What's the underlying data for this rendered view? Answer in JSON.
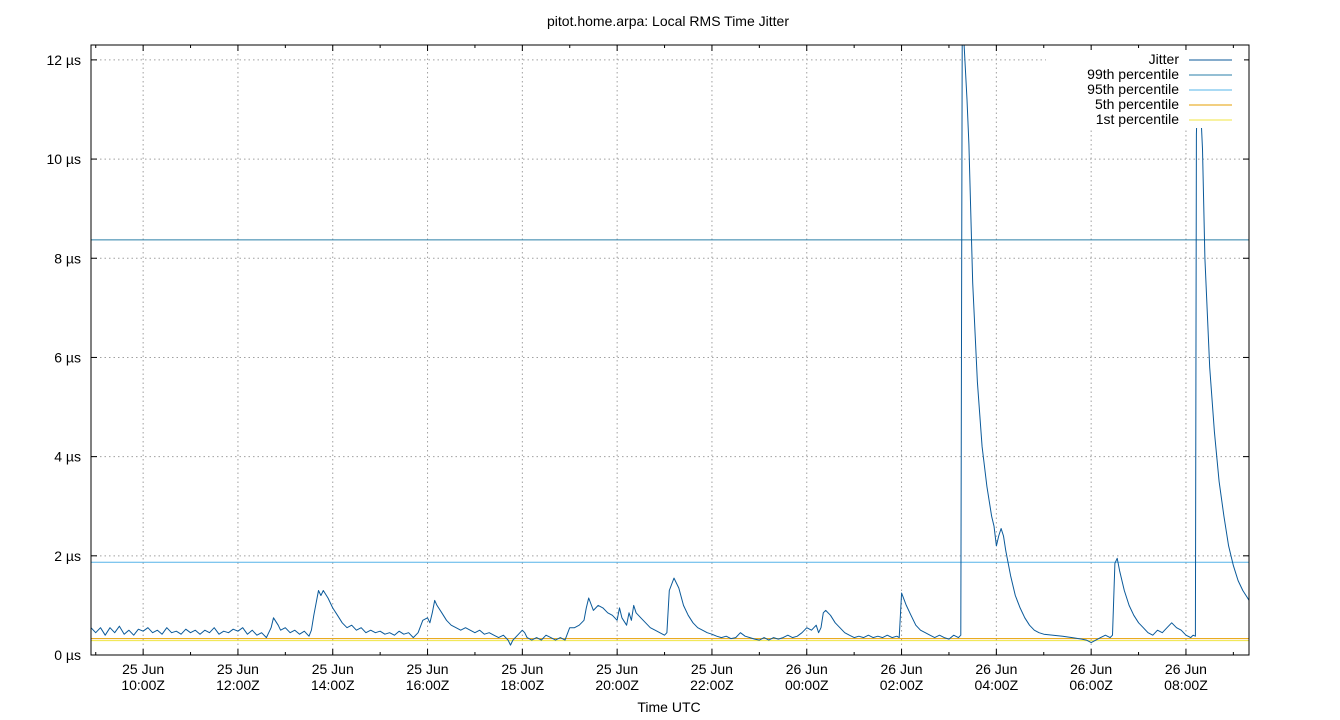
{
  "chart_data": {
    "type": "line",
    "title": "pitot.home.arpa: Local RMS Time Jitter",
    "xlabel": "Time UTC",
    "ylabel": "",
    "x_unit": "hours UTC (2023-06-25 00:00Z = 0)",
    "xlim": [
      8.9,
      33.33
    ],
    "ylim": [
      0,
      12.3
    ],
    "y_ticks": [
      0,
      2,
      4,
      6,
      8,
      10,
      12
    ],
    "y_tick_labels": [
      "0 µs",
      "2 µs",
      "4 µs",
      "6 µs",
      "8 µs",
      "10 µs",
      "12 µs"
    ],
    "x_ticks": [
      {
        "x": 10,
        "day": "25 Jun",
        "time": "10:00Z"
      },
      {
        "x": 12,
        "day": "25 Jun",
        "time": "12:00Z"
      },
      {
        "x": 14,
        "day": "25 Jun",
        "time": "14:00Z"
      },
      {
        "x": 16,
        "day": "25 Jun",
        "time": "16:00Z"
      },
      {
        "x": 18,
        "day": "25 Jun",
        "time": "18:00Z"
      },
      {
        "x": 20,
        "day": "25 Jun",
        "time": "20:00Z"
      },
      {
        "x": 22,
        "day": "25 Jun",
        "time": "22:00Z"
      },
      {
        "x": 24,
        "day": "26 Jun",
        "time": "00:00Z"
      },
      {
        "x": 26,
        "day": "26 Jun",
        "time": "02:00Z"
      },
      {
        "x": 28,
        "day": "26 Jun",
        "time": "04:00Z"
      },
      {
        "x": 30,
        "day": "26 Jun",
        "time": "06:00Z"
      },
      {
        "x": 32,
        "day": "26 Jun",
        "time": "08:00Z"
      }
    ],
    "grid": true,
    "legend_position": "top-right",
    "series": [
      {
        "name": "Jitter",
        "color": "#0b5a9a",
        "points": [
          [
            8.9,
            0.55
          ],
          [
            9.0,
            0.45
          ],
          [
            9.1,
            0.55
          ],
          [
            9.2,
            0.4
          ],
          [
            9.3,
            0.55
          ],
          [
            9.4,
            0.45
          ],
          [
            9.5,
            0.58
          ],
          [
            9.6,
            0.42
          ],
          [
            9.7,
            0.5
          ],
          [
            9.8,
            0.4
          ],
          [
            9.9,
            0.52
          ],
          [
            10.0,
            0.48
          ],
          [
            10.1,
            0.55
          ],
          [
            10.2,
            0.45
          ],
          [
            10.3,
            0.5
          ],
          [
            10.4,
            0.42
          ],
          [
            10.5,
            0.55
          ],
          [
            10.6,
            0.45
          ],
          [
            10.7,
            0.48
          ],
          [
            10.8,
            0.42
          ],
          [
            10.9,
            0.52
          ],
          [
            11.0,
            0.45
          ],
          [
            11.1,
            0.5
          ],
          [
            11.2,
            0.42
          ],
          [
            11.3,
            0.5
          ],
          [
            11.4,
            0.45
          ],
          [
            11.5,
            0.55
          ],
          [
            11.6,
            0.42
          ],
          [
            11.7,
            0.48
          ],
          [
            11.8,
            0.45
          ],
          [
            11.9,
            0.52
          ],
          [
            12.0,
            0.48
          ],
          [
            12.1,
            0.55
          ],
          [
            12.2,
            0.42
          ],
          [
            12.3,
            0.5
          ],
          [
            12.4,
            0.4
          ],
          [
            12.5,
            0.45
          ],
          [
            12.6,
            0.35
          ],
          [
            12.7,
            0.55
          ],
          [
            12.75,
            0.75
          ],
          [
            12.85,
            0.6
          ],
          [
            12.9,
            0.5
          ],
          [
            13.0,
            0.55
          ],
          [
            13.1,
            0.45
          ],
          [
            13.2,
            0.5
          ],
          [
            13.3,
            0.42
          ],
          [
            13.4,
            0.48
          ],
          [
            13.5,
            0.38
          ],
          [
            13.55,
            0.5
          ],
          [
            13.6,
            0.8
          ],
          [
            13.7,
            1.3
          ],
          [
            13.75,
            1.2
          ],
          [
            13.8,
            1.3
          ],
          [
            13.9,
            1.15
          ],
          [
            14.0,
            0.95
          ],
          [
            14.1,
            0.8
          ],
          [
            14.2,
            0.65
          ],
          [
            14.3,
            0.55
          ],
          [
            14.4,
            0.6
          ],
          [
            14.5,
            0.5
          ],
          [
            14.6,
            0.55
          ],
          [
            14.7,
            0.45
          ],
          [
            14.8,
            0.5
          ],
          [
            14.9,
            0.45
          ],
          [
            15.0,
            0.48
          ],
          [
            15.1,
            0.42
          ],
          [
            15.2,
            0.45
          ],
          [
            15.3,
            0.4
          ],
          [
            15.4,
            0.48
          ],
          [
            15.5,
            0.42
          ],
          [
            15.6,
            0.45
          ],
          [
            15.7,
            0.35
          ],
          [
            15.8,
            0.45
          ],
          [
            15.9,
            0.7
          ],
          [
            16.0,
            0.75
          ],
          [
            16.05,
            0.65
          ],
          [
            16.1,
            0.85
          ],
          [
            16.15,
            1.1
          ],
          [
            16.2,
            1.0
          ],
          [
            16.3,
            0.85
          ],
          [
            16.4,
            0.7
          ],
          [
            16.5,
            0.6
          ],
          [
            16.6,
            0.55
          ],
          [
            16.7,
            0.5
          ],
          [
            16.8,
            0.55
          ],
          [
            16.9,
            0.5
          ],
          [
            17.0,
            0.45
          ],
          [
            17.1,
            0.5
          ],
          [
            17.2,
            0.42
          ],
          [
            17.3,
            0.45
          ],
          [
            17.4,
            0.4
          ],
          [
            17.5,
            0.35
          ],
          [
            17.6,
            0.4
          ],
          [
            17.7,
            0.3
          ],
          [
            17.75,
            0.2
          ],
          [
            17.8,
            0.3
          ],
          [
            17.9,
            0.4
          ],
          [
            18.0,
            0.5
          ],
          [
            18.05,
            0.45
          ],
          [
            18.1,
            0.35
          ],
          [
            18.2,
            0.3
          ],
          [
            18.3,
            0.35
          ],
          [
            18.4,
            0.3
          ],
          [
            18.5,
            0.4
          ],
          [
            18.6,
            0.35
          ],
          [
            18.7,
            0.3
          ],
          [
            18.8,
            0.35
          ],
          [
            18.9,
            0.3
          ],
          [
            19.0,
            0.55
          ],
          [
            19.1,
            0.55
          ],
          [
            19.2,
            0.6
          ],
          [
            19.3,
            0.7
          ],
          [
            19.35,
            0.95
          ],
          [
            19.4,
            1.15
          ],
          [
            19.5,
            0.9
          ],
          [
            19.6,
            1.0
          ],
          [
            19.7,
            0.95
          ],
          [
            19.8,
            0.85
          ],
          [
            19.9,
            0.8
          ],
          [
            20.0,
            0.7
          ],
          [
            20.05,
            0.95
          ],
          [
            20.1,
            0.75
          ],
          [
            20.2,
            0.6
          ],
          [
            20.25,
            0.85
          ],
          [
            20.3,
            0.7
          ],
          [
            20.35,
            1.0
          ],
          [
            20.4,
            0.85
          ],
          [
            20.5,
            0.75
          ],
          [
            20.6,
            0.65
          ],
          [
            20.7,
            0.55
          ],
          [
            20.8,
            0.5
          ],
          [
            20.9,
            0.45
          ],
          [
            21.0,
            0.4
          ],
          [
            21.05,
            0.45
          ],
          [
            21.1,
            1.3
          ],
          [
            21.2,
            1.55
          ],
          [
            21.3,
            1.35
          ],
          [
            21.4,
            1.0
          ],
          [
            21.5,
            0.8
          ],
          [
            21.6,
            0.65
          ],
          [
            21.7,
            0.55
          ],
          [
            21.8,
            0.5
          ],
          [
            21.9,
            0.45
          ],
          [
            22.0,
            0.42
          ],
          [
            22.1,
            0.38
          ],
          [
            22.2,
            0.35
          ],
          [
            22.3,
            0.38
          ],
          [
            22.4,
            0.33
          ],
          [
            22.5,
            0.35
          ],
          [
            22.6,
            0.45
          ],
          [
            22.7,
            0.38
          ],
          [
            22.8,
            0.35
          ],
          [
            22.9,
            0.32
          ],
          [
            23.0,
            0.3
          ],
          [
            23.1,
            0.35
          ],
          [
            23.2,
            0.3
          ],
          [
            23.3,
            0.35
          ],
          [
            23.4,
            0.32
          ],
          [
            23.5,
            0.35
          ],
          [
            23.6,
            0.4
          ],
          [
            23.7,
            0.35
          ],
          [
            23.8,
            0.38
          ],
          [
            23.9,
            0.45
          ],
          [
            24.0,
            0.55
          ],
          [
            24.1,
            0.5
          ],
          [
            24.2,
            0.6
          ],
          [
            24.25,
            0.45
          ],
          [
            24.3,
            0.55
          ],
          [
            24.35,
            0.85
          ],
          [
            24.4,
            0.9
          ],
          [
            24.5,
            0.8
          ],
          [
            24.6,
            0.65
          ],
          [
            24.7,
            0.55
          ],
          [
            24.8,
            0.45
          ],
          [
            24.9,
            0.4
          ],
          [
            25.0,
            0.35
          ],
          [
            25.1,
            0.38
          ],
          [
            25.2,
            0.35
          ],
          [
            25.3,
            0.4
          ],
          [
            25.4,
            0.35
          ],
          [
            25.5,
            0.38
          ],
          [
            25.6,
            0.35
          ],
          [
            25.7,
            0.4
          ],
          [
            25.8,
            0.35
          ],
          [
            25.9,
            0.38
          ],
          [
            25.95,
            0.35
          ],
          [
            26.0,
            1.25
          ],
          [
            26.1,
            1.0
          ],
          [
            26.2,
            0.8
          ],
          [
            26.3,
            0.6
          ],
          [
            26.4,
            0.5
          ],
          [
            26.5,
            0.45
          ],
          [
            26.6,
            0.4
          ],
          [
            26.7,
            0.35
          ],
          [
            26.8,
            0.4
          ],
          [
            26.9,
            0.35
          ],
          [
            27.0,
            0.32
          ],
          [
            27.1,
            0.4
          ],
          [
            27.2,
            0.35
          ],
          [
            27.25,
            0.4
          ],
          [
            27.28,
            12.3
          ],
          [
            27.32,
            12.3
          ],
          [
            27.38,
            11.2
          ],
          [
            27.42,
            10.3
          ],
          [
            27.5,
            7.5
          ],
          [
            27.6,
            5.5
          ],
          [
            27.7,
            4.2
          ],
          [
            27.8,
            3.4
          ],
          [
            27.9,
            2.8
          ],
          [
            27.95,
            2.6
          ],
          [
            28.0,
            2.2
          ],
          [
            28.05,
            2.4
          ],
          [
            28.1,
            2.55
          ],
          [
            28.15,
            2.4
          ],
          [
            28.2,
            2.1
          ],
          [
            28.3,
            1.6
          ],
          [
            28.4,
            1.2
          ],
          [
            28.5,
            0.95
          ],
          [
            28.6,
            0.75
          ],
          [
            28.7,
            0.6
          ],
          [
            28.8,
            0.5
          ],
          [
            28.9,
            0.45
          ],
          [
            29.0,
            0.42
          ],
          [
            29.2,
            0.4
          ],
          [
            29.4,
            0.38
          ],
          [
            29.6,
            0.35
          ],
          [
            29.8,
            0.32
          ],
          [
            29.9,
            0.3
          ],
          [
            30.0,
            0.25
          ],
          [
            30.1,
            0.3
          ],
          [
            30.2,
            0.35
          ],
          [
            30.3,
            0.4
          ],
          [
            30.4,
            0.35
          ],
          [
            30.45,
            0.4
          ],
          [
            30.5,
            1.85
          ],
          [
            30.55,
            1.95
          ],
          [
            30.6,
            1.7
          ],
          [
            30.7,
            1.3
          ],
          [
            30.8,
            1.0
          ],
          [
            30.9,
            0.8
          ],
          [
            31.0,
            0.65
          ],
          [
            31.1,
            0.55
          ],
          [
            31.2,
            0.45
          ],
          [
            31.3,
            0.4
          ],
          [
            31.4,
            0.5
          ],
          [
            31.5,
            0.45
          ],
          [
            31.6,
            0.55
          ],
          [
            31.7,
            0.65
          ],
          [
            31.8,
            0.55
          ],
          [
            31.9,
            0.5
          ],
          [
            32.0,
            0.4
          ],
          [
            32.1,
            0.35
          ],
          [
            32.15,
            0.4
          ],
          [
            32.2,
            0.38
          ],
          [
            32.22,
            10.5
          ],
          [
            32.25,
            11.5
          ],
          [
            32.28,
            10.8
          ],
          [
            32.3,
            11.2
          ],
          [
            32.35,
            10.2
          ],
          [
            32.4,
            8.0
          ],
          [
            32.5,
            5.8
          ],
          [
            32.6,
            4.5
          ],
          [
            32.7,
            3.5
          ],
          [
            32.8,
            2.8
          ],
          [
            32.9,
            2.2
          ],
          [
            33.0,
            1.8
          ],
          [
            33.1,
            1.5
          ],
          [
            33.2,
            1.3
          ],
          [
            33.3,
            1.15
          ],
          [
            33.33,
            1.1
          ]
        ]
      },
      {
        "name": "99th percentile",
        "color": "#2a7fa8",
        "constant": 8.37
      },
      {
        "name": "95th percentile",
        "color": "#56b4e9",
        "constant": 1.87
      },
      {
        "name": "5th percentile",
        "color": "#e69f00",
        "constant": 0.33
      },
      {
        "name": "1st percentile",
        "color": "#f0e442",
        "constant": 0.29
      }
    ]
  }
}
